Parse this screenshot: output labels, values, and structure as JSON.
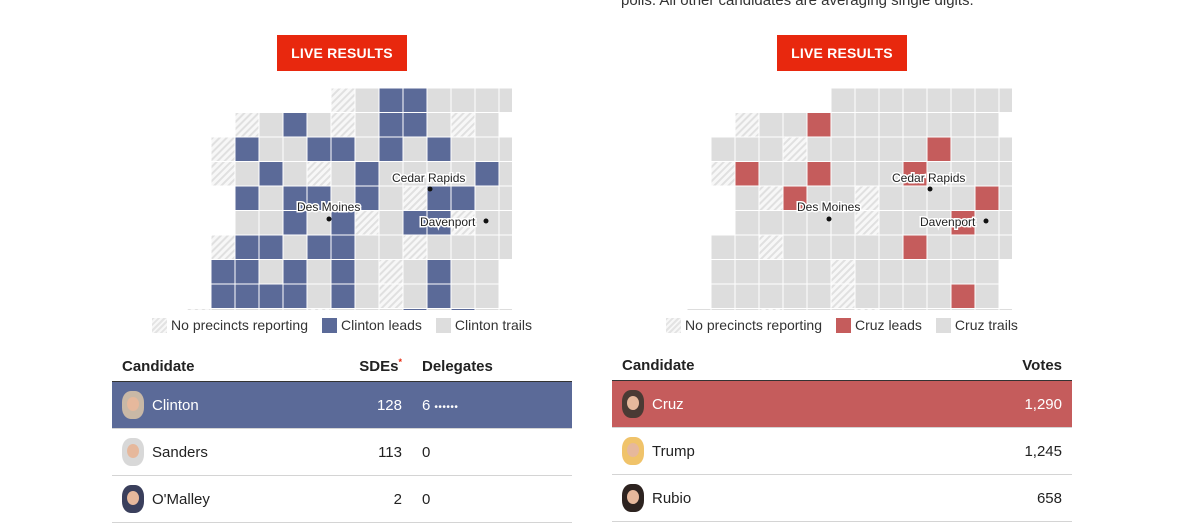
{
  "intro_text": "polls. All other candidates are averaging single digits.",
  "colors": {
    "live": "#e8280e",
    "clinton": "#5b6a98",
    "cruz": "#c55c5c",
    "trail": "#dddddd"
  },
  "dem": {
    "live_label": "LIVE RESULTS",
    "legend": {
      "none": "No precincts reporting",
      "leads": "Clinton leads",
      "trails": "Clinton trails"
    },
    "map": {
      "cities": [
        "Cedar Rapids",
        "Des Moines",
        "Davenport"
      ]
    },
    "table": {
      "headers": {
        "candidate": "Candidate",
        "sdes": "SDEs",
        "sdes_mark": "*",
        "delegates": "Delegates"
      },
      "rows": [
        {
          "name": "Clinton",
          "sdes": "128",
          "delegates": "6",
          "dots": "••••••",
          "avatar": "clinton-avatar"
        },
        {
          "name": "Sanders",
          "sdes": "113",
          "delegates": "0",
          "dots": "",
          "avatar": "sanders-avatar"
        },
        {
          "name": "O'Malley",
          "sdes": "2",
          "delegates": "0",
          "dots": "",
          "avatar": "omalley-avatar"
        }
      ]
    }
  },
  "gop": {
    "live_label": "LIVE RESULTS",
    "legend": {
      "none": "No precincts reporting",
      "leads": "Cruz leads",
      "trails": "Cruz trails"
    },
    "map": {
      "cities": [
        "Cedar Rapids",
        "Des Moines",
        "Davenport"
      ]
    },
    "table": {
      "headers": {
        "candidate": "Candidate",
        "votes": "Votes"
      },
      "rows": [
        {
          "name": "Cruz",
          "votes": "1,290",
          "avatar": "cruz-avatar"
        },
        {
          "name": "Trump",
          "votes": "1,245",
          "avatar": "trump-avatar"
        },
        {
          "name": "Rubio",
          "votes": "658",
          "avatar": "rubio-avatar"
        }
      ]
    }
  }
}
